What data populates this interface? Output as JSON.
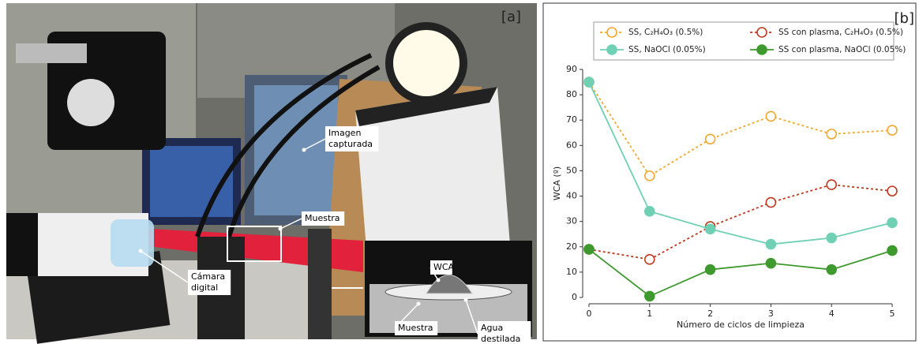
{
  "photo_panel": {
    "panel_label": "[a]",
    "annotations": [
      {
        "lines": [
          "Imagen",
          "capturada"
        ]
      },
      {
        "lines": [
          "Muestra"
        ]
      },
      {
        "lines": [
          "Cámara",
          "digital"
        ]
      },
      {
        "lines": [
          "WCA"
        ]
      },
      {
        "lines": [
          "Muestra"
        ]
      },
      {
        "lines": [
          "Agua",
          "destilada"
        ]
      }
    ]
  },
  "chart_data": {
    "type": "line",
    "panel_label": "[b]",
    "x_label": "Número de ciclos de limpieza",
    "y_label": "WCA (º)",
    "x": [
      0,
      1,
      2,
      3,
      4,
      5
    ],
    "xlim": [
      0,
      5
    ],
    "xticks": [
      0,
      1,
      2,
      3,
      4,
      5
    ],
    "ylim": [
      0,
      90
    ],
    "yticks": [
      0,
      10,
      20,
      30,
      40,
      50,
      60,
      70,
      80,
      90
    ],
    "series": [
      {
        "name": "SS, C₂H₄O₃ (0.5%)",
        "color": "#f0a830",
        "line_style": "dotted",
        "marker": "open",
        "values": [
          85,
          48,
          62.5,
          71.5,
          64.5,
          66
        ]
      },
      {
        "name": "SS con plasma, C₂H₄O₃ (0.5%)",
        "color": "#c0391e",
        "line_style": "dotted",
        "marker": "open",
        "values": [
          19,
          15,
          28,
          37.5,
          44.5,
          42
        ]
      },
      {
        "name": "SS, NaOCl (0.05%)",
        "color": "#6fd0b4",
        "line_style": "solid",
        "marker": "filled",
        "values": [
          85,
          34,
          27,
          21,
          23.5,
          29.5
        ]
      },
      {
        "name": "SS con plasma, NaOCl (0.05%)",
        "color": "#3e9a2e",
        "line_style": "solid",
        "marker": "filled",
        "values": [
          19,
          0.5,
          11,
          13.5,
          11,
          18.5
        ]
      }
    ]
  }
}
